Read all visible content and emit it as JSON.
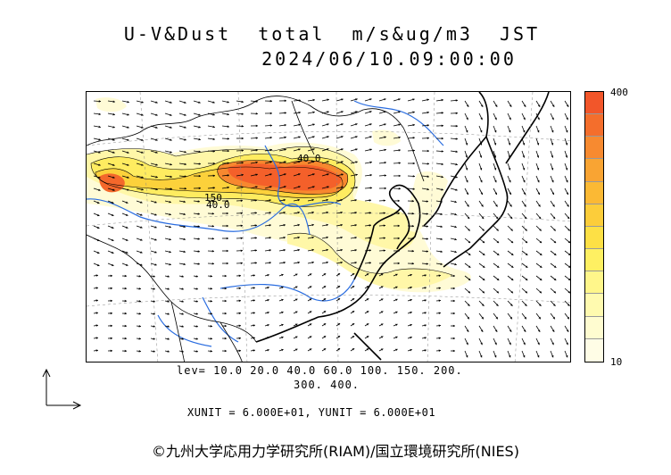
{
  "title_line1": "U-V&Dust  total  m/s&ug/m3  JST",
  "title_line2": "2024/06/10.09:00:00",
  "colorbar": {
    "max_label": "400",
    "min_label": "10",
    "colors": [
      "#f2562a",
      "#f46e2c",
      "#f78a30",
      "#f9a433",
      "#fbb934",
      "#fccd3a",
      "#fde045",
      "#fef062",
      "#fff68a",
      "#fffaaf",
      "#fffcd0",
      "#fffde6"
    ]
  },
  "lev_line1": "lev= 10.0 20.0 40.0 60.0 100. 150. 200.",
  "lev_line2": "300. 400.",
  "unit_line": "XUNIT = 6.000E+01, YUNIT = 6.000E+01",
  "contour_labels": [
    "40.0",
    "150",
    "40.0"
  ],
  "copyright": "©九州大学応用力学研究所(RIAM)/国立環境研究所(NIES)"
}
